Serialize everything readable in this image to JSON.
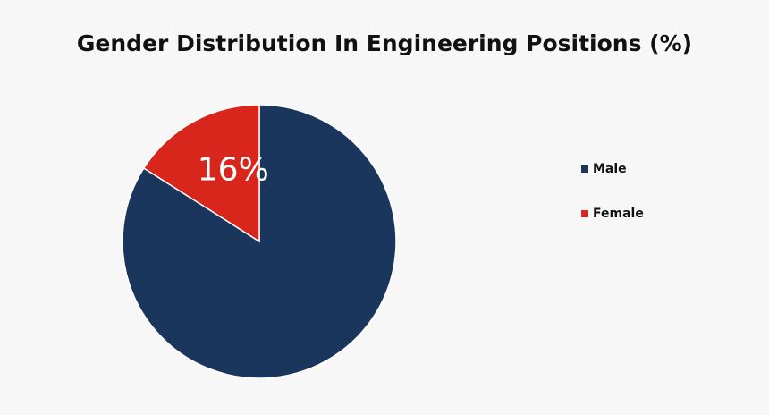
{
  "chart_data": {
    "type": "pie",
    "title": "Gender Distribution In Engineering Positions (%)",
    "slices": [
      {
        "name": "Male",
        "value": 84,
        "color": "#1b365d",
        "label": ""
      },
      {
        "name": "Female",
        "value": 16,
        "color": "#d9261c",
        "label": "16%"
      }
    ],
    "legend_position": "right"
  }
}
